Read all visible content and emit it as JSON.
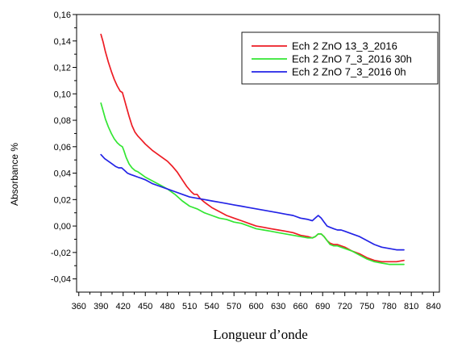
{
  "chart_data": {
    "type": "line",
    "title": "",
    "xlabel": "Longueur d’onde",
    "ylabel": "Absorbance %",
    "xlim": [
      357,
      848
    ],
    "ylim": [
      -0.05,
      0.16
    ],
    "grid": false,
    "legend_position": "top-right",
    "xticks": [
      360,
      390,
      420,
      450,
      480,
      510,
      540,
      570,
      600,
      630,
      660,
      690,
      720,
      750,
      780,
      810,
      840
    ],
    "xtick_labels": [
      "360",
      "390",
      "420",
      "450",
      "480",
      "510",
      "540",
      "570",
      "600",
      "630",
      "660",
      "690",
      "720",
      "750",
      "780",
      "810",
      "840"
    ],
    "yticks": [
      0.16,
      0.14,
      0.12,
      0.1,
      0.08,
      0.06,
      0.04,
      0.02,
      0.0,
      -0.02,
      -0.04
    ],
    "ytick_labels": [
      "0,16",
      "0,14",
      "0,12",
      "0,10",
      "0,08",
      "0,06",
      "0,04",
      "0,02",
      "0,00",
      "-0,02",
      "-0,04"
    ],
    "series": [
      {
        "name": "Ech 2 ZnO 13_3_2016",
        "color": "#ed1c24",
        "x": [
          390,
          393,
          396,
          400,
          404,
          408,
          412,
          416,
          419,
          421,
          424,
          428,
          432,
          436,
          440,
          445,
          450,
          460,
          470,
          480,
          487,
          493,
          500,
          506,
          512,
          516,
          520,
          524,
          530,
          540,
          550,
          560,
          570,
          580,
          590,
          600,
          610,
          620,
          630,
          640,
          650,
          660,
          670,
          676,
          680,
          684,
          688,
          692,
          696,
          700,
          705,
          710,
          715,
          720,
          730,
          740,
          750,
          760,
          770,
          780,
          790,
          800
        ],
        "y": [
          0.145,
          0.139,
          0.132,
          0.124,
          0.117,
          0.111,
          0.106,
          0.102,
          0.101,
          0.097,
          0.091,
          0.083,
          0.076,
          0.071,
          0.068,
          0.065,
          0.062,
          0.057,
          0.053,
          0.049,
          0.045,
          0.041,
          0.035,
          0.03,
          0.026,
          0.024,
          0.024,
          0.021,
          0.018,
          0.014,
          0.011,
          0.008,
          0.006,
          0.004,
          0.002,
          0.0,
          -0.001,
          -0.002,
          -0.003,
          -0.004,
          -0.005,
          -0.007,
          -0.008,
          -0.009,
          -0.008,
          -0.006,
          -0.006,
          -0.008,
          -0.011,
          -0.013,
          -0.014,
          -0.014,
          -0.015,
          -0.016,
          -0.019,
          -0.021,
          -0.024,
          -0.026,
          -0.027,
          -0.027,
          -0.027,
          -0.026
        ]
      },
      {
        "name": "Ech 2 ZnO 7_3_2016 30h",
        "color": "#33e633",
        "x": [
          390,
          393,
          396,
          400,
          404,
          408,
          412,
          416,
          419,
          421,
          424,
          428,
          432,
          436,
          440,
          445,
          450,
          460,
          470,
          480,
          490,
          500,
          510,
          520,
          530,
          540,
          550,
          560,
          570,
          580,
          590,
          600,
          610,
          620,
          630,
          640,
          650,
          660,
          670,
          676,
          680,
          684,
          688,
          692,
          696,
          700,
          705,
          710,
          715,
          720,
          730,
          740,
          750,
          760,
          770,
          780,
          790,
          800
        ],
        "y": [
          0.093,
          0.087,
          0.081,
          0.075,
          0.07,
          0.066,
          0.063,
          0.061,
          0.06,
          0.057,
          0.052,
          0.047,
          0.044,
          0.042,
          0.041,
          0.039,
          0.037,
          0.034,
          0.031,
          0.028,
          0.024,
          0.019,
          0.015,
          0.013,
          0.01,
          0.008,
          0.006,
          0.005,
          0.003,
          0.002,
          0.0,
          -0.002,
          -0.003,
          -0.004,
          -0.005,
          -0.006,
          -0.007,
          -0.008,
          -0.009,
          -0.009,
          -0.008,
          -0.006,
          -0.006,
          -0.008,
          -0.011,
          -0.014,
          -0.015,
          -0.015,
          -0.016,
          -0.017,
          -0.019,
          -0.022,
          -0.025,
          -0.027,
          -0.028,
          -0.029,
          -0.029,
          -0.029
        ]
      },
      {
        "name": "Ech 2 ZnO 7_3_2016 0h",
        "color": "#2323e6",
        "x": [
          390,
          395,
          400,
          405,
          410,
          414,
          418,
          422,
          426,
          430,
          435,
          440,
          445,
          450,
          460,
          470,
          480,
          490,
          500,
          510,
          520,
          530,
          540,
          550,
          560,
          570,
          580,
          590,
          600,
          610,
          620,
          630,
          640,
          650,
          660,
          670,
          676,
          680,
          684,
          688,
          692,
          696,
          700,
          705,
          710,
          715,
          720,
          730,
          740,
          750,
          760,
          770,
          780,
          790,
          800
        ],
        "y": [
          0.054,
          0.051,
          0.049,
          0.047,
          0.045,
          0.044,
          0.044,
          0.042,
          0.04,
          0.039,
          0.038,
          0.037,
          0.036,
          0.035,
          0.032,
          0.03,
          0.028,
          0.026,
          0.024,
          0.022,
          0.021,
          0.02,
          0.019,
          0.018,
          0.017,
          0.016,
          0.015,
          0.014,
          0.013,
          0.012,
          0.011,
          0.01,
          0.009,
          0.008,
          0.006,
          0.005,
          0.004,
          0.006,
          0.008,
          0.006,
          0.003,
          0.0,
          -0.001,
          -0.002,
          -0.003,
          -0.003,
          -0.004,
          -0.006,
          -0.008,
          -0.011,
          -0.014,
          -0.016,
          -0.017,
          -0.018,
          -0.018
        ]
      }
    ]
  }
}
